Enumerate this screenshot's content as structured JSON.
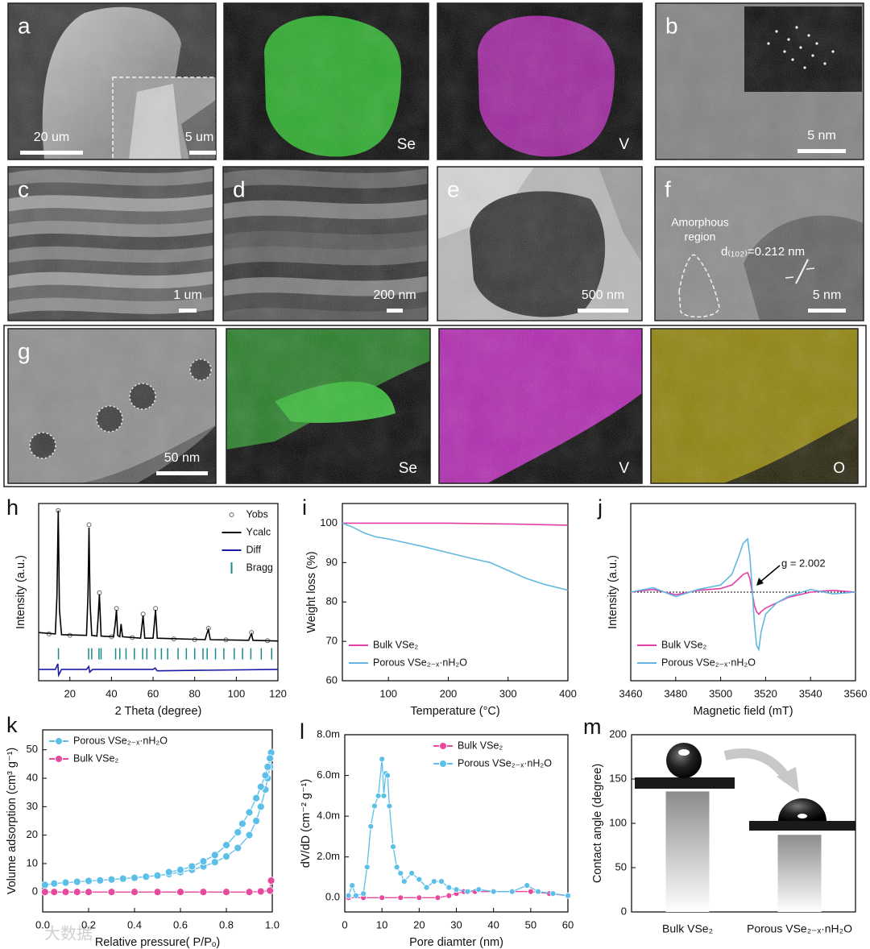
{
  "watermark": "大数据",
  "micrographs": [
    {
      "label": "a",
      "scale_bar": "20 um",
      "inset_scale_bar": "5 um"
    },
    {
      "element": "Se"
    },
    {
      "element": "V"
    },
    {
      "label": "b",
      "scale_bar": "5 nm"
    },
    {
      "label": "c",
      "scale_bar": "1 um"
    },
    {
      "label": "d",
      "scale_bar": "200 nm"
    },
    {
      "label": "e",
      "scale_bar": "500 nm"
    },
    {
      "label": "f",
      "scale_bar": "5 nm",
      "annotation_lines": [
        "Amorphous",
        "region"
      ],
      "d_spacing": "d₍₁₀₂₎=0.212 nm"
    },
    {
      "label": "g",
      "scale_bar": "50 nm"
    },
    {
      "element": "Se"
    },
    {
      "element": "V"
    },
    {
      "element": "O"
    }
  ],
  "chart_data": [
    {
      "type": "line",
      "label": "h",
      "xlabel": "2 Theta (degree)",
      "ylabel": "Intensity (a.u.)",
      "xlim": [
        5,
        120
      ],
      "ylim": [
        -20,
        105
      ],
      "xticks": [
        20,
        40,
        60,
        80,
        100,
        120
      ],
      "legend": "upper right",
      "series": [
        {
          "name": "Yobs",
          "color": "#666666",
          "marker": "open-circle",
          "x": [
            10,
            14.4,
            20,
            29.2,
            34.2,
            40,
            42.4,
            50,
            55.2,
            61.2,
            70,
            80,
            86.6,
            95,
            107.3,
            115
          ],
          "values": [
            13,
            100,
            12,
            90,
            42,
            11,
            31,
            10.5,
            27,
            31,
            9.5,
            9,
            17,
            8.8,
            14,
            8.3
          ]
        },
        {
          "name": "Ycalc",
          "color": "#000000",
          "x": [
            5,
            13,
            13.8,
            14.4,
            15,
            16,
            28,
            28.7,
            29.2,
            29.7,
            30.5,
            33,
            33.6,
            34.2,
            35,
            41,
            41.8,
            42.4,
            43,
            44,
            44.6,
            45.3,
            54,
            54.6,
            55.2,
            56,
            60,
            60.6,
            61.2,
            62,
            85,
            85.8,
            86.6,
            87.5,
            106,
            106.6,
            107.3,
            108,
            120
          ],
          "values": [
            14,
            13,
            40,
            100,
            30,
            12.5,
            12,
            40,
            88,
            35,
            12,
            11.5,
            25,
            41,
            11.5,
            11,
            20,
            30,
            12,
            11,
            20,
            11,
            10,
            18,
            26,
            10,
            10,
            20,
            30,
            10,
            9,
            13,
            16,
            9,
            8.5,
            11,
            13,
            8.5,
            8
          ]
        },
        {
          "name": "Diff",
          "color": "#1a1aa8",
          "x": [
            5,
            13,
            14.2,
            14.6,
            16,
            28,
            29.1,
            29.5,
            31,
            60,
            61,
            62,
            120
          ],
          "values": [
            -12,
            -12,
            -8,
            -16,
            -12,
            -12,
            -10,
            -14,
            -12,
            -12,
            -11,
            -13,
            -12
          ]
        },
        {
          "name": "Bragg",
          "color": "#1a8a8a",
          "style": "ticks",
          "x": [
            14.5,
            29,
            30.5,
            34,
            35,
            42,
            44,
            47,
            51,
            55,
            57,
            61,
            64,
            67,
            72,
            76,
            80,
            84,
            86,
            90,
            94,
            99,
            103,
            107,
            112,
            117
          ],
          "values": [
            -1,
            -1,
            -1,
            -1,
            -1,
            -1,
            -1,
            -1,
            -1,
            -1,
            -1,
            -1,
            -1,
            -1,
            -1,
            -1,
            -1,
            -1,
            -1,
            -1,
            -1,
            -1,
            -1,
            -1,
            -1,
            -1
          ]
        }
      ]
    },
    {
      "type": "line",
      "label": "i",
      "xlabel": "Temperature (°C)",
      "ylabel": "Weight loss (%)",
      "xlim": [
        23,
        400
      ],
      "ylim": [
        60,
        105
      ],
      "xticks": [
        100,
        200,
        300,
        400
      ],
      "yticks": [
        60,
        70,
        80,
        90,
        100
      ],
      "legend": "lower left",
      "series": [
        {
          "name": "Bulk VSe₂",
          "color": "#e23fa6",
          "x": [
            23,
            100,
            200,
            300,
            400
          ],
          "values": [
            100,
            100,
            100,
            99.8,
            99.5
          ]
        },
        {
          "name": "Porous VSe₂₋ₓ·nH₂O",
          "color": "#62b8e0",
          "x": [
            23,
            40,
            60,
            80,
            100,
            130,
            160,
            200,
            240,
            270,
            300,
            330,
            360,
            400
          ],
          "values": [
            100,
            99,
            97.5,
            96.5,
            96,
            95,
            94,
            92.5,
            91,
            90,
            88,
            86,
            84.5,
            83
          ]
        }
      ]
    },
    {
      "type": "line",
      "label": "j",
      "xlabel": "Magnetic field (mT)",
      "ylabel": "Intensity (a.u.)",
      "xlim": [
        3460,
        3560
      ],
      "ylim": [
        -1,
        1
      ],
      "xticks": [
        3460,
        3480,
        3500,
        3520,
        3540,
        3560
      ],
      "legend": "lower left",
      "reference_line": 0,
      "annotation": "g = 2.002",
      "series": [
        {
          "name": "Bulk VSe₂",
          "color": "#e23fa6",
          "x": [
            3460,
            3470,
            3480,
            3490,
            3500,
            3505,
            3508,
            3510,
            3512,
            3513,
            3514,
            3515,
            3516,
            3517,
            3518,
            3520,
            3525,
            3530,
            3540,
            3550,
            3560
          ],
          "values": [
            0,
            0.03,
            -0.03,
            0.02,
            0.04,
            0.08,
            0.15,
            0.2,
            0.22,
            0.15,
            0,
            -0.15,
            -0.22,
            -0.25,
            -0.22,
            -0.18,
            -0.12,
            -0.06,
            0,
            0.02,
            0
          ]
        },
        {
          "name": "Porous VSe₂₋ₓ·nH₂O",
          "color": "#62b8e0",
          "x": [
            3460,
            3470,
            3480,
            3490,
            3500,
            3505,
            3508,
            3510,
            3512,
            3513,
            3514,
            3515,
            3516,
            3517,
            3518,
            3520,
            3525,
            3530,
            3540,
            3550,
            3560
          ],
          "values": [
            0,
            0.05,
            -0.05,
            0.03,
            0.08,
            0.2,
            0.4,
            0.55,
            0.6,
            0.4,
            0.05,
            -0.35,
            -0.6,
            -0.65,
            -0.45,
            -0.25,
            -0.12,
            -0.05,
            0.03,
            -0.02,
            0
          ]
        }
      ]
    },
    {
      "type": "line",
      "label": "k",
      "xlabel": "Relative pressure( P/Pₒ)",
      "ylabel": "Volume adsorption (cm³ g⁻¹)",
      "xlim": [
        0,
        1
      ],
      "ylim": [
        -7,
        57
      ],
      "xticks": [
        {
          "value": 0,
          "label": "0.0"
        },
        0.2,
        0.4,
        0.6,
        0.8,
        {
          "value": 1,
          "label": "1.0"
        }
      ],
      "yticks": [
        0,
        10,
        20,
        30,
        40,
        50
      ],
      "legend": "upper left",
      "series": [
        {
          "name": "Porous VSe₂₋ₓ·nH₂O",
          "color": "#5bbfe8",
          "marker": "circle",
          "x": [
            0.01,
            0.05,
            0.1,
            0.15,
            0.2,
            0.25,
            0.3,
            0.35,
            0.4,
            0.45,
            0.5,
            0.55,
            0.6,
            0.65,
            0.7,
            0.75,
            0.8,
            0.85,
            0.9,
            0.93,
            0.95,
            0.97,
            0.98,
            0.99,
            0.995,
            0.99,
            0.98,
            0.97,
            0.95,
            0.93,
            0.9,
            0.87,
            0.85,
            0.8,
            0.75,
            0.7,
            0.65,
            0.6,
            0.55
          ],
          "values": [
            2.5,
            3,
            3.3,
            3.6,
            3.9,
            4.1,
            4.4,
            4.7,
            5,
            5.4,
            5.8,
            6.3,
            7,
            7.8,
            9,
            10.5,
            12.5,
            15.5,
            20,
            25,
            30,
            36,
            40,
            44,
            49,
            47,
            44,
            41,
            37,
            33,
            28,
            24,
            21,
            16.5,
            13,
            10.8,
            9,
            7.8,
            7
          ]
        },
        {
          "name": "Bulk VSe₂",
          "color": "#e8489e",
          "marker": "circle",
          "x": [
            0.01,
            0.05,
            0.1,
            0.15,
            0.2,
            0.3,
            0.4,
            0.5,
            0.6,
            0.7,
            0.8,
            0.9,
            0.95,
            0.99,
            0.995
          ],
          "values": [
            0,
            0,
            0,
            0,
            0,
            0,
            0,
            0,
            0,
            0,
            0,
            0,
            0.2,
            0.5,
            4
          ]
        }
      ]
    },
    {
      "type": "line",
      "label": "l",
      "xlabel": "Pore diamter (nm)",
      "ylabel": "dV/dD (cm⁻² g⁻¹)",
      "xlim": [
        0,
        60
      ],
      "ylim": [
        -0.0007,
        0.008
      ],
      "xticks": [
        0,
        10,
        20,
        30,
        40,
        50,
        60
      ],
      "yticks": [
        {
          "value": 0,
          "label": "0.0"
        },
        {
          "value": 0.002,
          "label": "2.0m"
        },
        {
          "value": 0.004,
          "label": "4.0m"
        },
        {
          "value": 0.006,
          "label": "6.0m"
        },
        {
          "value": 0.008,
          "label": "8.0m"
        }
      ],
      "legend": "upper right",
      "series": [
        {
          "name": "Bulk VSe₂",
          "color": "#e8489e",
          "marker": "circle",
          "x": [
            1,
            5,
            10,
            15,
            20,
            25,
            28,
            30,
            32,
            35,
            40,
            45,
            50,
            55,
            60
          ],
          "values": [
            0,
            0,
            0,
            0,
            0,
            0,
            0.0001,
            0.0002,
            0.0003,
            0.0003,
            0.0003,
            0.0003,
            0.0003,
            0.0002,
            0.0001
          ]
        },
        {
          "name": "Porous VSe₂₋ₓ·nH₂O",
          "color": "#5bbfe8",
          "marker": "circle",
          "x": [
            1,
            2,
            3,
            5,
            6,
            7,
            8,
            9,
            10,
            10.5,
            11,
            11.5,
            12,
            13,
            14,
            15,
            16,
            18,
            20,
            22,
            24,
            26,
            28,
            30,
            33,
            36,
            40,
            45,
            49,
            52,
            56,
            60
          ],
          "values": [
            0.0001,
            0.0006,
            0.0001,
            0.0002,
            0.0015,
            0.0035,
            0.0045,
            0.005,
            0.0068,
            0.005,
            0.0061,
            0.006,
            0.0045,
            0.0025,
            0.0015,
            0.0012,
            0.0008,
            0.0012,
            0.0009,
            0.0005,
            0.0008,
            0.0008,
            0.0005,
            0.0004,
            0.0003,
            0.0004,
            0.0003,
            0.0003,
            0.0006,
            0.0003,
            0.0002,
            0.0001
          ]
        }
      ]
    },
    {
      "type": "bar",
      "label": "m",
      "ylabel": "Contact angle (degree)",
      "categories": [
        "Bulk VSe₂",
        "Porous VSe₂₋ₓ·nH₂O"
      ],
      "values": [
        136,
        87
      ],
      "color": "#8c8c8c",
      "ylim": [
        0,
        200
      ],
      "yticks": [
        0,
        50,
        100,
        150,
        200
      ]
    }
  ]
}
